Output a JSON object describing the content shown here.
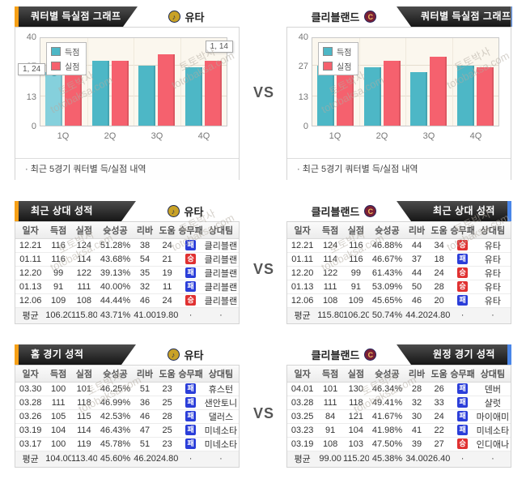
{
  "vs_label": "VS",
  "teams": {
    "left": {
      "name": "유타",
      "logo_icon": "utah-jazz-logo",
      "logo_glyph": "♪"
    },
    "right": {
      "name": "클리블랜드",
      "logo_icon": "cleveland-cavs-logo",
      "logo_glyph": "C"
    }
  },
  "watermark": {
    "line1": "토토박사",
    "line2": "totobaksa.com"
  },
  "chart_section": {
    "left_title": "쿼터별 득실점 그래프",
    "right_title": "쿼터별 득실점 그래프",
    "footnote": "· 최근 5경기 쿼터별 득/실점 내역"
  },
  "chart_data": [
    {
      "type": "bar",
      "team": "유타",
      "title": "쿼터별 득실점 그래프",
      "categories": [
        "1Q",
        "2Q",
        "3Q",
        "4Q"
      ],
      "series": [
        {
          "name": "득점",
          "color": "#4db7c6",
          "values": [
            24,
            29,
            27,
            26
          ]
        },
        {
          "name": "실점",
          "color": "#f5616e",
          "values": [
            30,
            29,
            32,
            29
          ]
        }
      ],
      "ylim": [
        0,
        40
      ],
      "yticks": [
        0,
        13,
        27,
        40
      ],
      "grid": true,
      "legend_position": "top-left",
      "tooltips": [
        {
          "text": "1, 24",
          "position": "mid-left"
        },
        {
          "text": "1, 14",
          "position": "top-right"
        }
      ],
      "highlight": {
        "category": "1Q",
        "series": "득점",
        "light_color": "#85d0dc",
        "marker": true
      }
    },
    {
      "type": "bar",
      "team": "클리블랜드",
      "title": "쿼터별 득실점 그래프",
      "categories": [
        "1Q",
        "2Q",
        "3Q",
        "4Q"
      ],
      "series": [
        {
          "name": "득점",
          "color": "#4db7c6",
          "values": [
            27,
            26,
            24,
            27
          ]
        },
        {
          "name": "실점",
          "color": "#f5616e",
          "values": [
            28,
            29,
            31,
            26
          ]
        }
      ],
      "ylim": [
        0,
        40
      ],
      "yticks": [
        0,
        13,
        27,
        40
      ],
      "grid": true,
      "legend_position": "top-left",
      "tooltips": []
    }
  ],
  "tables": [
    {
      "title": "최근 상대 성적",
      "team": "유타",
      "columns": [
        "일자",
        "득점",
        "실점",
        "슛성공",
        "리바",
        "도움",
        "승무패",
        "상대팀"
      ],
      "rows": [
        [
          "12.21",
          "116",
          "124",
          "51.28%",
          "38",
          "24",
          "패",
          "클리블랜"
        ],
        [
          "01.11",
          "116",
          "114",
          "43.68%",
          "54",
          "21",
          "승",
          "클리블랜"
        ],
        [
          "12.20",
          "99",
          "122",
          "39.13%",
          "35",
          "19",
          "패",
          "클리블랜"
        ],
        [
          "01.13",
          "91",
          "111",
          "40.00%",
          "32",
          "11",
          "패",
          "클리블랜"
        ],
        [
          "12.06",
          "109",
          "108",
          "44.44%",
          "46",
          "24",
          "승",
          "클리블랜"
        ]
      ],
      "average": [
        "평균",
        "106.20",
        "115.80",
        "43.71%",
        "41.00",
        "19.80",
        "·",
        "·"
      ]
    },
    {
      "title": "최근 상대 성적",
      "team": "클리블랜드",
      "columns": [
        "일자",
        "득점",
        "실점",
        "슛성공",
        "리바",
        "도움",
        "승무패",
        "상대팀"
      ],
      "rows": [
        [
          "12.21",
          "124",
          "116",
          "46.88%",
          "44",
          "34",
          "승",
          "유타"
        ],
        [
          "01.11",
          "114",
          "116",
          "46.67%",
          "37",
          "18",
          "패",
          "유타"
        ],
        [
          "12.20",
          "122",
          "99",
          "61.43%",
          "44",
          "24",
          "승",
          "유타"
        ],
        [
          "01.13",
          "111",
          "91",
          "53.09%",
          "50",
          "28",
          "승",
          "유타"
        ],
        [
          "12.06",
          "108",
          "109",
          "45.65%",
          "46",
          "20",
          "패",
          "유타"
        ]
      ],
      "average": [
        "평균",
        "115.80",
        "106.20",
        "50.74%",
        "44.20",
        "24.80",
        "·",
        "·"
      ]
    },
    {
      "title": "홈 경기 성적",
      "team": "유타",
      "columns": [
        "일자",
        "득점",
        "실점",
        "슛성공",
        "리바",
        "도움",
        "승무패",
        "상대팀"
      ],
      "rows": [
        [
          "03.30",
          "100",
          "101",
          "46.25%",
          "51",
          "23",
          "패",
          "휴스턴"
        ],
        [
          "03.28",
          "111",
          "118",
          "46.99%",
          "36",
          "25",
          "패",
          "샌안토니"
        ],
        [
          "03.26",
          "105",
          "115",
          "42.53%",
          "46",
          "28",
          "패",
          "댈러스"
        ],
        [
          "03.19",
          "104",
          "114",
          "46.43%",
          "47",
          "25",
          "패",
          "미네소타"
        ],
        [
          "03.17",
          "100",
          "119",
          "45.78%",
          "51",
          "23",
          "패",
          "미네소타"
        ]
      ],
      "average": [
        "평균",
        "104.00",
        "113.40",
        "45.60%",
        "46.20",
        "24.80",
        "·",
        "·"
      ]
    },
    {
      "title": "원정 경기 성적",
      "team": "클리블랜드",
      "columns": [
        "일자",
        "득점",
        "실점",
        "슛성공",
        "리바",
        "도움",
        "승무패",
        "상대팀"
      ],
      "rows": [
        [
          "04.01",
          "101",
          "130",
          "46.34%",
          "28",
          "26",
          "패",
          "덴버"
        ],
        [
          "03.28",
          "111",
          "118",
          "49.41%",
          "32",
          "33",
          "패",
          "샬럿"
        ],
        [
          "03.25",
          "84",
          "121",
          "41.67%",
          "30",
          "24",
          "패",
          "마이애미"
        ],
        [
          "03.23",
          "91",
          "104",
          "41.98%",
          "41",
          "22",
          "패",
          "미네소타"
        ],
        [
          "03.19",
          "108",
          "103",
          "47.50%",
          "39",
          "27",
          "승",
          "인디애나"
        ]
      ],
      "average": [
        "평균",
        "99.00",
        "115.20",
        "45.38%",
        "34.00",
        "26.40",
        "·",
        "·"
      ]
    }
  ],
  "colors": {
    "accent_orange": "#f6a017",
    "accent_blue": "#4a86e8",
    "ribbon_black": "#2a2a2a",
    "score_teal": "#4db7c6",
    "score_teal_light": "#85d0dc",
    "allow_red": "#f5616e",
    "win_badge": "#e03131",
    "loss_badge": "#2b3ed9",
    "chart_bg": "#fbf7ee"
  }
}
